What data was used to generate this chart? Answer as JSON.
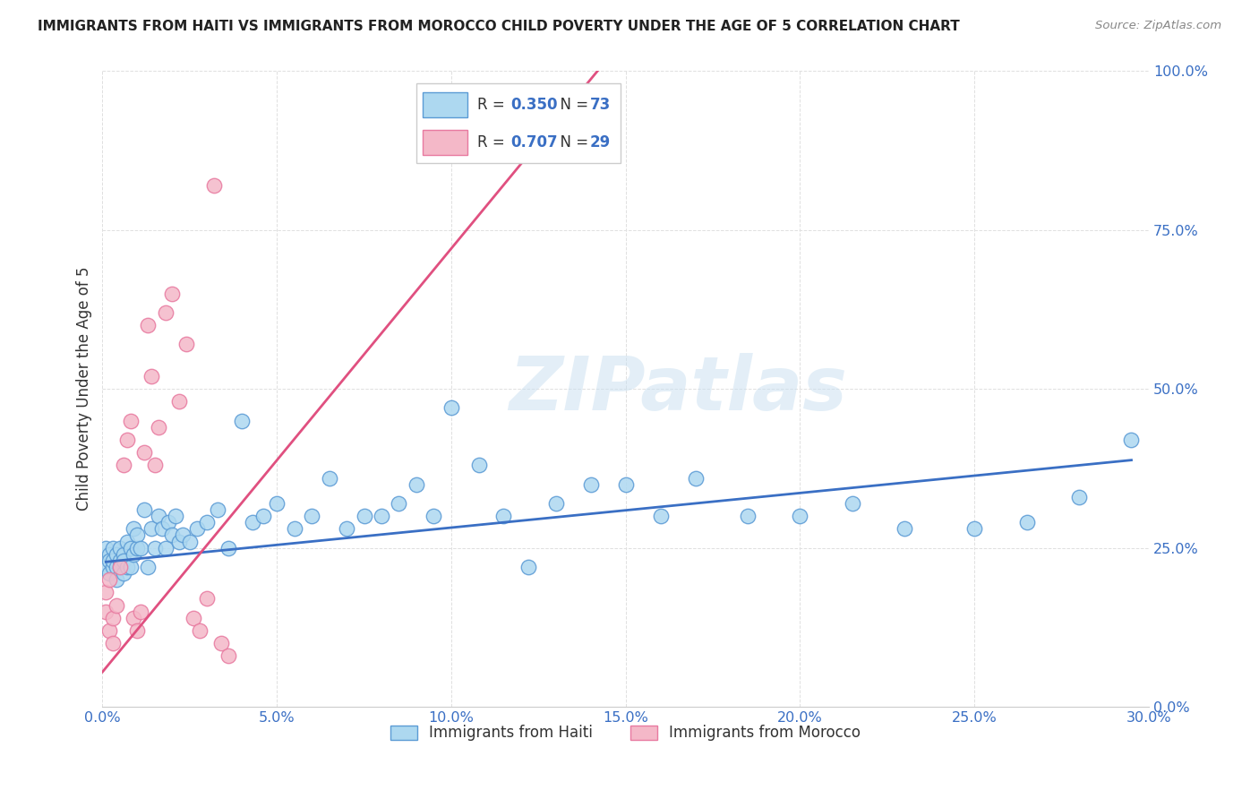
{
  "title": "IMMIGRANTS FROM HAITI VS IMMIGRANTS FROM MOROCCO CHILD POVERTY UNDER THE AGE OF 5 CORRELATION CHART",
  "source": "Source: ZipAtlas.com",
  "ylabel": "Child Poverty Under the Age of 5",
  "xlim": [
    0,
    0.3
  ],
  "ylim": [
    0,
    1.0
  ],
  "xticks": [
    0.0,
    0.05,
    0.1,
    0.15,
    0.2,
    0.25,
    0.3
  ],
  "yticks": [
    0.0,
    0.25,
    0.5,
    0.75,
    1.0
  ],
  "xtick_labels": [
    "0.0%",
    "5.0%",
    "10.0%",
    "15.0%",
    "20.0%",
    "25.0%",
    "30.0%"
  ],
  "ytick_labels": [
    "0.0%",
    "25.0%",
    "50.0%",
    "75.0%",
    "100.0%"
  ],
  "haiti_color": "#add8f0",
  "morocco_color": "#f4b8c8",
  "haiti_edge_color": "#5b9bd5",
  "morocco_edge_color": "#e87aa0",
  "haiti_line_color": "#3a6fc4",
  "morocco_line_color": "#e05080",
  "haiti_R": 0.35,
  "haiti_N": 73,
  "morocco_R": 0.707,
  "morocco_N": 29,
  "haiti_x": [
    0.001,
    0.001,
    0.002,
    0.002,
    0.002,
    0.003,
    0.003,
    0.003,
    0.004,
    0.004,
    0.004,
    0.005,
    0.005,
    0.005,
    0.006,
    0.006,
    0.006,
    0.007,
    0.007,
    0.008,
    0.008,
    0.009,
    0.009,
    0.01,
    0.01,
    0.011,
    0.012,
    0.013,
    0.014,
    0.015,
    0.016,
    0.017,
    0.018,
    0.019,
    0.02,
    0.021,
    0.022,
    0.023,
    0.025,
    0.027,
    0.03,
    0.033,
    0.036,
    0.04,
    0.043,
    0.046,
    0.05,
    0.055,
    0.06,
    0.065,
    0.07,
    0.075,
    0.08,
    0.085,
    0.09,
    0.095,
    0.1,
    0.108,
    0.115,
    0.122,
    0.13,
    0.14,
    0.15,
    0.16,
    0.17,
    0.185,
    0.2,
    0.215,
    0.23,
    0.25,
    0.265,
    0.28,
    0.295
  ],
  "haiti_y": [
    0.25,
    0.22,
    0.24,
    0.23,
    0.21,
    0.22,
    0.25,
    0.23,
    0.24,
    0.22,
    0.2,
    0.23,
    0.25,
    0.22,
    0.21,
    0.24,
    0.23,
    0.22,
    0.26,
    0.25,
    0.22,
    0.24,
    0.28,
    0.25,
    0.27,
    0.25,
    0.31,
    0.22,
    0.28,
    0.25,
    0.3,
    0.28,
    0.25,
    0.29,
    0.27,
    0.3,
    0.26,
    0.27,
    0.26,
    0.28,
    0.29,
    0.31,
    0.25,
    0.45,
    0.29,
    0.3,
    0.32,
    0.28,
    0.3,
    0.36,
    0.28,
    0.3,
    0.3,
    0.32,
    0.35,
    0.3,
    0.47,
    0.38,
    0.3,
    0.22,
    0.32,
    0.35,
    0.35,
    0.3,
    0.36,
    0.3,
    0.3,
    0.32,
    0.28,
    0.28,
    0.29,
    0.33,
    0.42
  ],
  "morocco_x": [
    0.001,
    0.001,
    0.002,
    0.002,
    0.003,
    0.003,
    0.004,
    0.005,
    0.006,
    0.007,
    0.008,
    0.009,
    0.01,
    0.011,
    0.012,
    0.013,
    0.014,
    0.015,
    0.016,
    0.018,
    0.02,
    0.022,
    0.024,
    0.026,
    0.028,
    0.03,
    0.032,
    0.034,
    0.036
  ],
  "morocco_y": [
    0.18,
    0.15,
    0.2,
    0.12,
    0.14,
    0.1,
    0.16,
    0.22,
    0.38,
    0.42,
    0.45,
    0.14,
    0.12,
    0.15,
    0.4,
    0.6,
    0.52,
    0.38,
    0.44,
    0.62,
    0.65,
    0.48,
    0.57,
    0.14,
    0.12,
    0.17,
    0.82,
    0.1,
    0.08
  ],
  "morocco_trend_x": [
    0.0,
    0.145
  ],
  "morocco_trend_y": [
    0.055,
    1.02
  ],
  "haiti_trend_x": [
    0.001,
    0.295
  ],
  "haiti_trend_y": [
    0.228,
    0.388
  ],
  "watermark": "ZIPatlas",
  "background_color": "#ffffff",
  "grid_color": "#e0e0e0",
  "legend_label_haiti": "Immigrants from Haiti",
  "legend_label_morocco": "Immigrants from Morocco"
}
